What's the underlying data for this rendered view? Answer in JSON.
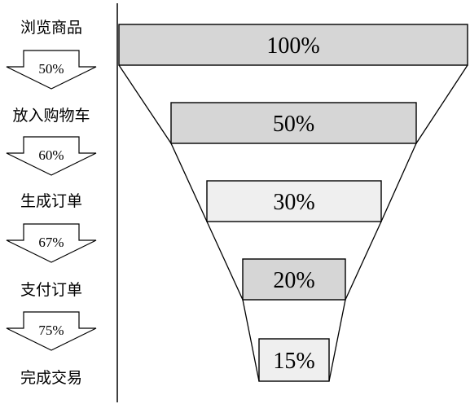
{
  "chart_data": {
    "type": "funnel",
    "stages": [
      {
        "name": "浏览商品",
        "value": 100,
        "label": "100%",
        "color": "#d6d6d6"
      },
      {
        "name": "放入购物车",
        "value": 50,
        "label": "50%",
        "color": "#d6d6d6"
      },
      {
        "name": "生成订单",
        "value": 30,
        "label": "30%",
        "color": "#efefef"
      },
      {
        "name": "支付订单",
        "value": 20,
        "label": "20%",
        "color": "#d6d6d6"
      },
      {
        "name": "完成交易",
        "value": 15,
        "label": "15%",
        "color": "#efefef"
      }
    ],
    "conversion_rates": [
      "50%",
      "60%",
      "67%",
      "75%"
    ]
  }
}
